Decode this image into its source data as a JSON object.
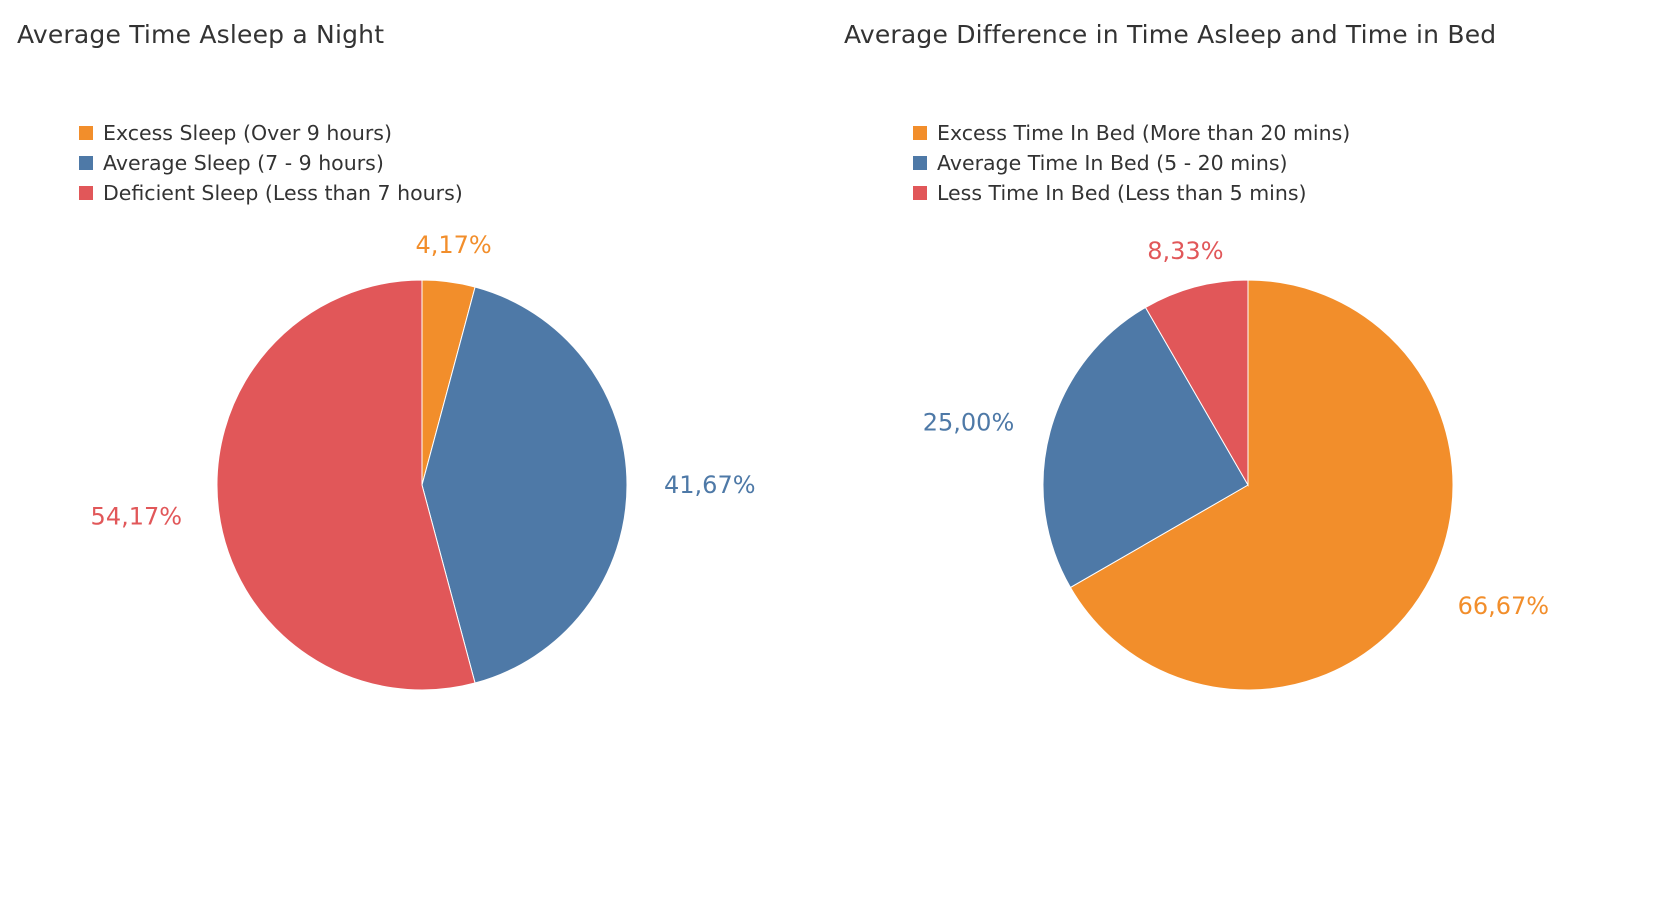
{
  "chart_data": [
    {
      "type": "pie",
      "title": "Average Time Asleep a Night",
      "legend_position": "top-left",
      "slices": [
        {
          "name": "Excess Sleep (Over 9 hours)",
          "value": 4.17,
          "label": "4,17%",
          "color": "#f28e2b"
        },
        {
          "name": "Average Sleep (7 - 9 hours)",
          "value": 41.67,
          "label": "41,67%",
          "color": "#4e79a7"
        },
        {
          "name": "Deficient Sleep (Less than 7 hours)",
          "value": 54.17,
          "label": "54,17%",
          "color": "#e15759"
        }
      ]
    },
    {
      "type": "pie",
      "title": "Average Difference in Time Asleep and Time in Bed",
      "legend_position": "top-left",
      "slices": [
        {
          "name": "Excess Time In Bed (More than 20 mins)",
          "value": 66.67,
          "label": "66,67%",
          "color": "#f28e2b"
        },
        {
          "name": "Average Time In Bed (5 - 20 mins)",
          "value": 25.0,
          "label": "25,00%",
          "color": "#4e79a7"
        },
        {
          "name": "Less Time In Bed (Less than 5 mins)",
          "value": 8.33,
          "label": "8,33%",
          "color": "#e15759"
        }
      ]
    }
  ]
}
